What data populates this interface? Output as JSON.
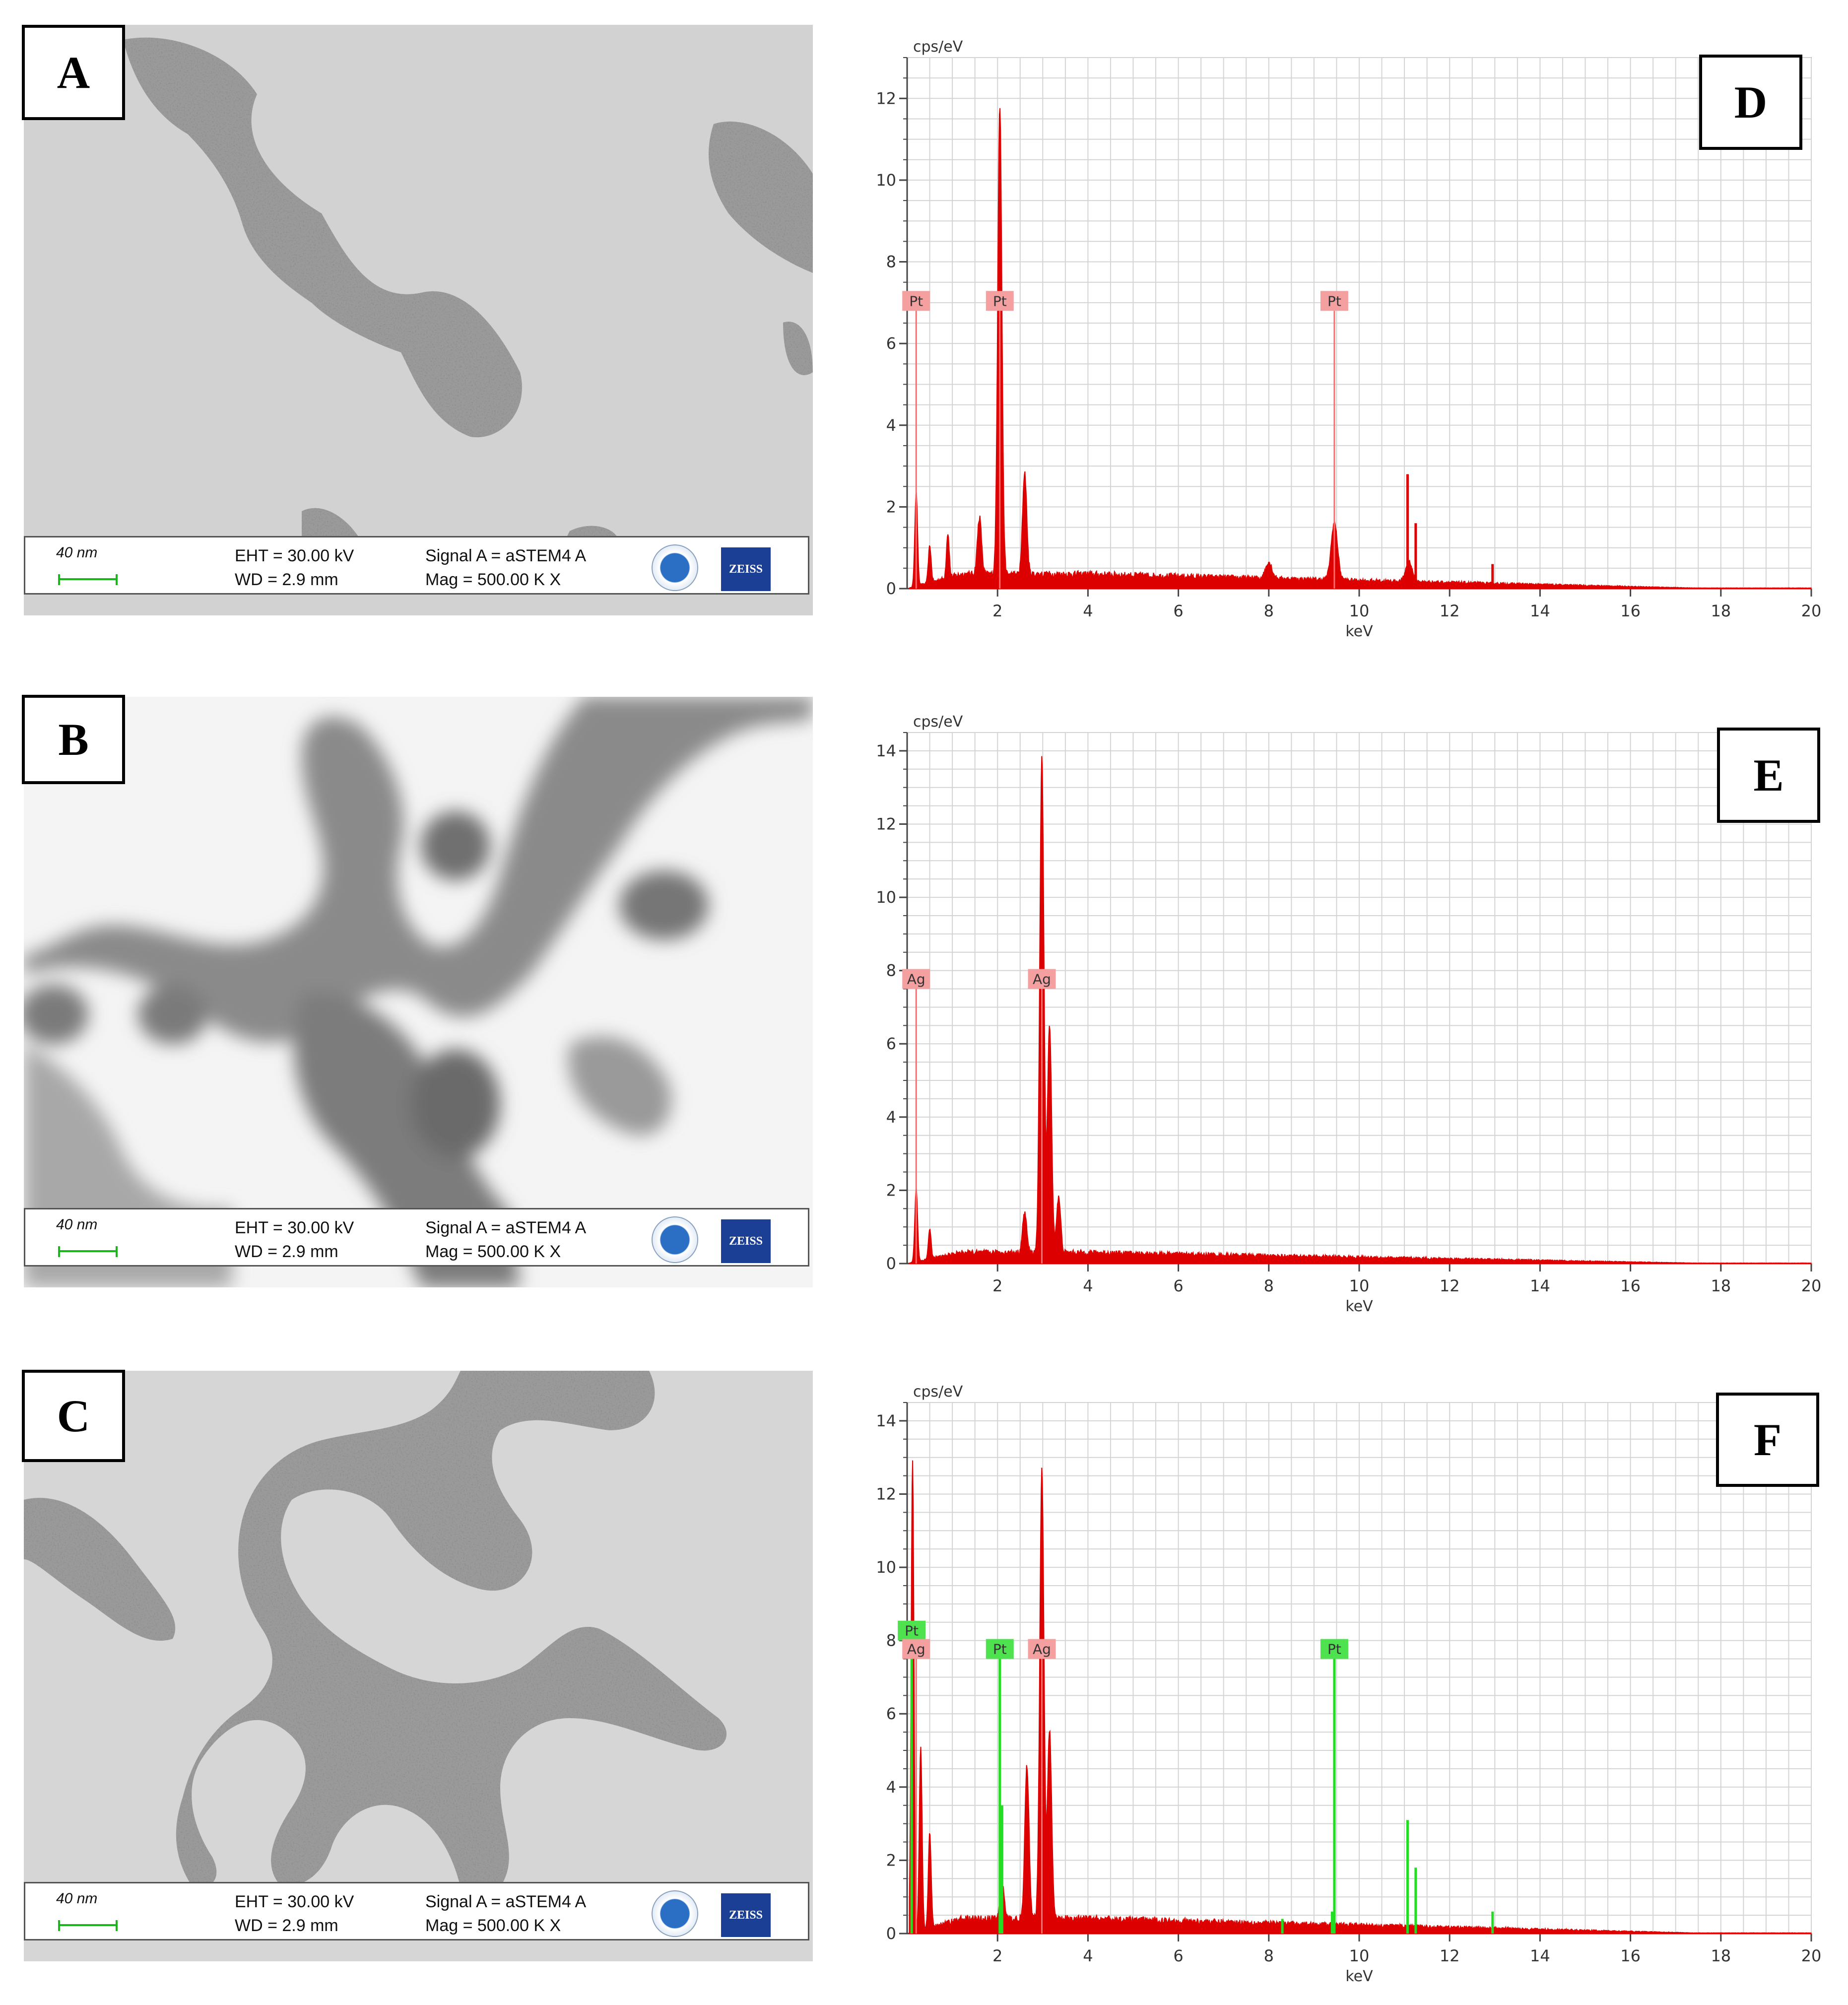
{
  "panels": {
    "A": "A",
    "B": "B",
    "C": "C",
    "D": "D",
    "E": "E",
    "F": "F"
  },
  "stem_info": {
    "scale_bar": "40 nm",
    "eht": "EHT = 30.00 kV",
    "wd": "WD =  2.9 mm",
    "signal": "Signal A = aSTEM4 A",
    "mag": "Mag =  500.00 K X",
    "zeiss_logo_text": "ZEISS"
  },
  "chart_data": [
    {
      "type": "line",
      "panel": "D",
      "ylabel": "cps/eV",
      "xlabel": "keV",
      "xlim": [
        0,
        20
      ],
      "ylim": [
        0,
        13
      ],
      "x_ticks": [
        "2",
        "4",
        "6",
        "8",
        "10",
        "12",
        "14",
        "16",
        "18",
        "20"
      ],
      "y_ticks": [
        "0",
        "2",
        "4",
        "6",
        "8",
        "10",
        "12"
      ],
      "grid": true,
      "series": [
        {
          "color": "#dd0000",
          "peaks": [
            {
              "x": 0.2,
              "y": 2.3
            },
            {
              "x": 0.5,
              "y": 0.9
            },
            {
              "x": 0.9,
              "y": 1.1
            },
            {
              "x": 1.6,
              "y": 1.4
            },
            {
              "x": 2.05,
              "y": 11.5
            },
            {
              "x": 2.6,
              "y": 2.5
            },
            {
              "x": 8.0,
              "y": 0.4
            },
            {
              "x": 9.45,
              "y": 1.4
            },
            {
              "x": 11.1,
              "y": 0.5
            }
          ],
          "lines": [
            {
              "x": 11.07,
              "y": 2.8
            },
            {
              "x": 11.25,
              "y": 1.6
            },
            {
              "x": 12.95,
              "y": 0.6
            }
          ],
          "baseline": 0.35
        }
      ],
      "element_markers": [
        {
          "label": "Pt",
          "x": 0.2,
          "y": 6.8
        },
        {
          "label": "Pt",
          "x": 2.05,
          "y": 6.8
        },
        {
          "label": "Pt",
          "x": 9.45,
          "y": 6.8
        }
      ]
    },
    {
      "type": "line",
      "panel": "E",
      "ylabel": "cps/eV",
      "xlabel": "keV",
      "xlim": [
        0,
        20
      ],
      "ylim": [
        0,
        14.5
      ],
      "x_ticks": [
        "2",
        "4",
        "6",
        "8",
        "10",
        "12",
        "14",
        "16",
        "18",
        "20"
      ],
      "y_ticks": [
        "0",
        "2",
        "4",
        "6",
        "8",
        "10",
        "12",
        "14"
      ],
      "grid": true,
      "series": [
        {
          "color": "#dd0000",
          "peaks": [
            {
              "x": 0.2,
              "y": 2.0
            },
            {
              "x": 0.5,
              "y": 0.8
            },
            {
              "x": 2.6,
              "y": 1.1
            },
            {
              "x": 2.98,
              "y": 13.5
            },
            {
              "x": 3.15,
              "y": 6.2
            },
            {
              "x": 3.35,
              "y": 1.5
            }
          ],
          "lines": [],
          "baseline": 0.3
        }
      ],
      "element_markers": [
        {
          "label": "Ag",
          "x": 0.2,
          "y": 7.5
        },
        {
          "label": "Ag",
          "x": 2.98,
          "y": 7.5
        }
      ]
    },
    {
      "type": "line",
      "panel": "F",
      "ylabel": "cps/eV",
      "xlabel": "keV",
      "xlim": [
        0,
        20
      ],
      "ylim": [
        0,
        14.5
      ],
      "x_ticks": [
        "2",
        "4",
        "6",
        "8",
        "10",
        "12",
        "14",
        "16",
        "18",
        "20"
      ],
      "y_ticks": [
        "0",
        "2",
        "4",
        "6",
        "8",
        "10",
        "12",
        "14"
      ],
      "grid": true,
      "series": [
        {
          "color": "#dd0000",
          "peaks": [
            {
              "x": 0.12,
              "y": 12.9
            },
            {
              "x": 0.3,
              "y": 5.0
            },
            {
              "x": 0.5,
              "y": 2.6
            },
            {
              "x": 2.1,
              "y": 1.0
            },
            {
              "x": 2.65,
              "y": 4.2
            },
            {
              "x": 2.98,
              "y": 12.3
            },
            {
              "x": 3.15,
              "y": 5.2
            }
          ],
          "lines": [],
          "baseline": 0.4
        },
        {
          "color": "#22dd22",
          "peaks": [],
          "lines": [
            {
              "x": 2.1,
              "y": 3.5
            },
            {
              "x": 8.3,
              "y": 0.4
            },
            {
              "x": 9.4,
              "y": 0.6
            },
            {
              "x": 11.07,
              "y": 3.1
            },
            {
              "x": 11.25,
              "y": 1.8
            },
            {
              "x": 12.95,
              "y": 0.6
            }
          ],
          "baseline": 0
        }
      ],
      "element_markers": [
        {
          "label": "Pt",
          "x": 0.1,
          "y": 8.0,
          "color": "green"
        },
        {
          "label": "Ag",
          "x": 0.2,
          "y": 7.5,
          "color": "red"
        },
        {
          "label": "Pt",
          "x": 2.05,
          "y": 7.5,
          "color": "green"
        },
        {
          "label": "Ag",
          "x": 2.98,
          "y": 7.5,
          "color": "red"
        },
        {
          "label": "Pt",
          "x": 9.45,
          "y": 7.5,
          "color": "green"
        }
      ]
    }
  ]
}
